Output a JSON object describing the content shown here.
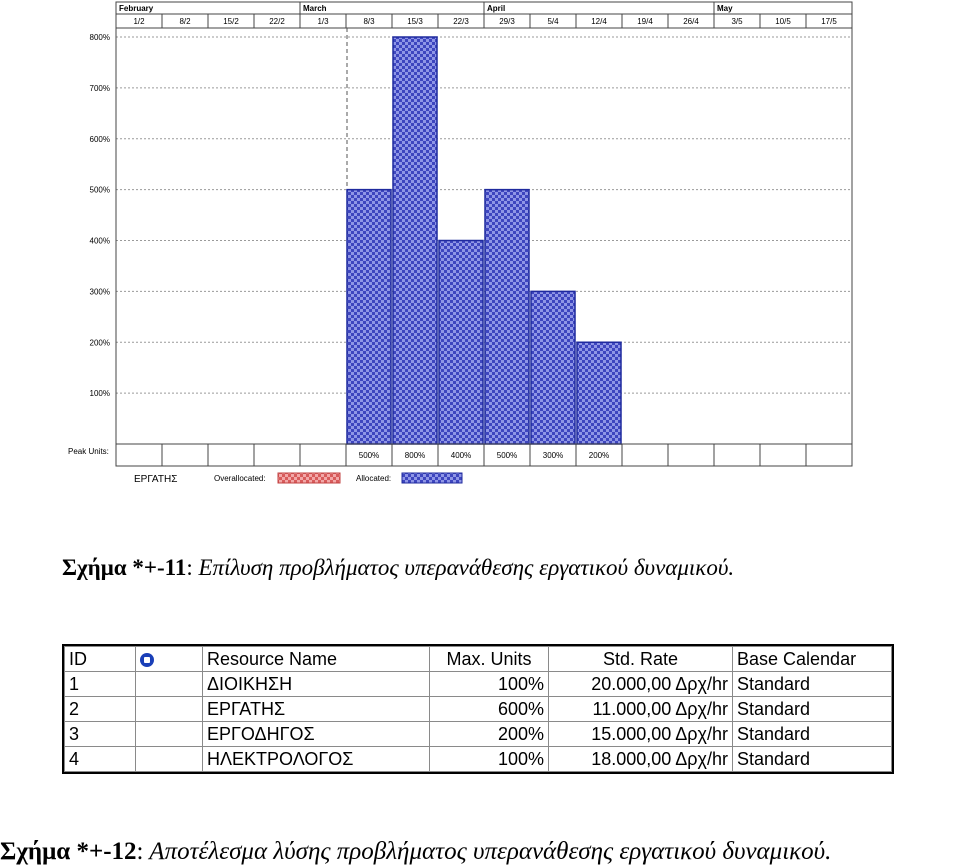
{
  "chart_data": {
    "type": "bar",
    "title": "",
    "months": [
      "February",
      "March",
      "April",
      "May"
    ],
    "dates": [
      "1/2",
      "8/2",
      "15/2",
      "22/2",
      "1/3",
      "8/3",
      "15/3",
      "22/3",
      "29/3",
      "5/4",
      "12/4",
      "19/4",
      "26/4",
      "3/5",
      "10/5",
      "17/5"
    ],
    "y_ticks": [
      "800%",
      "700%",
      "600%",
      "500%",
      "400%",
      "300%",
      "200%",
      "100%"
    ],
    "ylim": [
      0,
      800
    ],
    "categories": [
      "8/3",
      "15/3",
      "22/3",
      "29/3",
      "5/4",
      "12/4"
    ],
    "values": [
      500,
      800,
      400,
      500,
      300,
      200
    ],
    "peak_label": "Peak Units:",
    "peak_values": [
      "500%",
      "800%",
      "400%",
      "500%",
      "300%",
      "200%"
    ],
    "resource_label": "ΕΡΓΑΤΗΣ",
    "legend": [
      {
        "label": "Overallocated:",
        "color": "#e46a6a"
      },
      {
        "label": "Allocated:",
        "color": "#4a55c9"
      }
    ],
    "bar_color": "#4a55c9",
    "grid": true
  },
  "captions": {
    "fig11_label": "Σχήμα *+-11",
    "fig11_sep": ":",
    "fig11_text": " Επίλυση προβλήματος υπερανάθεσης εργατικού δυναμικού.",
    "fig12_label": "Σχήμα *+-12",
    "fig12_sep": ":",
    "fig12_text": " Αποτέλεσμα λύσης προβλήματος υπερανάθεσης εργατικού δυναμικού."
  },
  "table": {
    "headers": {
      "id": "ID",
      "indicator_icon": "info-icon",
      "name": "Resource Name",
      "max_units": "Max. Units",
      "std_rate": "Std. Rate",
      "base_calendar": "Base Calendar"
    },
    "rows": [
      {
        "id": "1",
        "name": "ΔΙΟΙΚΗΣΗ",
        "max_units": "100%",
        "std_rate": "20.000,00 Δρχ/hr",
        "base_calendar": "Standard"
      },
      {
        "id": "2",
        "name": "ΕΡΓΑΤΗΣ",
        "max_units": "600%",
        "std_rate": "11.000,00 Δρχ/hr",
        "base_calendar": "Standard"
      },
      {
        "id": "3",
        "name": "ΕΡΓΟΔΗΓΟΣ",
        "max_units": "200%",
        "std_rate": "15.000,00 Δρχ/hr",
        "base_calendar": "Standard"
      },
      {
        "id": "4",
        "name": "ΗΛΕΚΤΡΟΛΟΓΟΣ",
        "max_units": "100%",
        "std_rate": "18.000,00 Δρχ/hr",
        "base_calendar": "Standard"
      }
    ]
  }
}
